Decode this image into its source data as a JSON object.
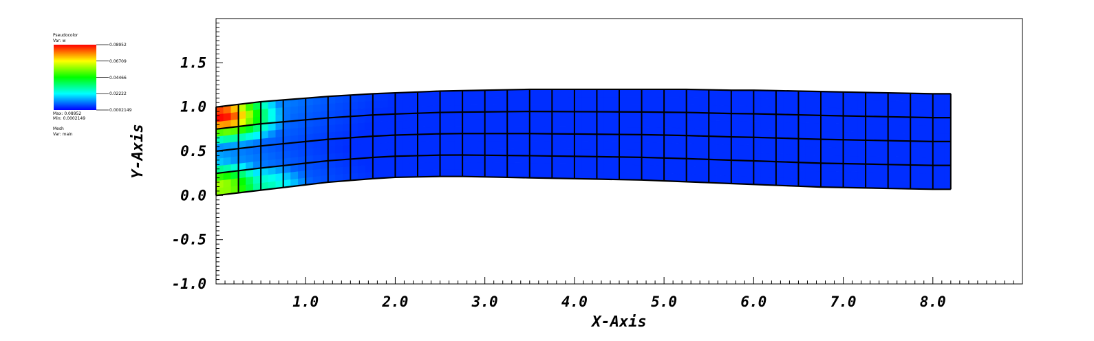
{
  "legend": {
    "pseudocolor": {
      "title": "Pseudocolor",
      "var": "Var: w",
      "ticks": [
        "0.08952",
        "0.06709",
        "0.04466",
        "0.02222",
        "0.0002149"
      ],
      "max": "Max: 0.08952",
      "min": "Min: 0.0002149",
      "colors": [
        "#ff0000",
        "#ffff00",
        "#00ff00",
        "#00ffff",
        "#0000ff"
      ]
    },
    "mesh": {
      "title": "Mesh",
      "var": "Var: main"
    }
  },
  "chart_data": {
    "type": "heatmap",
    "xlabel": "X-Axis",
    "ylabel": "Y-Axis",
    "xlim": [
      0,
      9
    ],
    "ylim": [
      -1,
      2
    ],
    "x_ticks": [
      "1.0",
      "2.0",
      "3.0",
      "4.0",
      "5.0",
      "6.0",
      "7.0",
      "8.0"
    ],
    "y_ticks": [
      "-1.0",
      "-0.5",
      "0.0",
      "0.5",
      "1.0",
      "1.5"
    ],
    "variable": "w",
    "value_range": [
      0.0002149,
      0.08952
    ],
    "mesh_edges": {
      "x": [
        0,
        0.25,
        0.5,
        0.75,
        1.0,
        1.25,
        1.5,
        1.75,
        2.0,
        2.25,
        2.5,
        2.75,
        3.0,
        3.25,
        3.5,
        3.75,
        4.0,
        4.25,
        4.5,
        4.75,
        5.0,
        5.25,
        5.5,
        5.75,
        6.0,
        6.25,
        6.5,
        6.75,
        7.0,
        7.25,
        7.5,
        7.75,
        8.0,
        8.2
      ],
      "bottom": [
        0.0,
        0.03,
        0.06,
        0.09,
        0.12,
        0.15,
        0.17,
        0.19,
        0.205,
        0.21,
        0.215,
        0.215,
        0.21,
        0.205,
        0.2,
        0.195,
        0.19,
        0.185,
        0.18,
        0.175,
        0.165,
        0.155,
        0.145,
        0.135,
        0.125,
        0.115,
        0.105,
        0.095,
        0.09,
        0.085,
        0.08,
        0.075,
        0.07,
        0.07
      ],
      "top": [
        1.0,
        1.03,
        1.06,
        1.08,
        1.1,
        1.12,
        1.135,
        1.15,
        1.16,
        1.17,
        1.18,
        1.185,
        1.19,
        1.195,
        1.2,
        1.2,
        1.2,
        1.2,
        1.2,
        1.2,
        1.2,
        1.2,
        1.195,
        1.19,
        1.19,
        1.185,
        1.18,
        1.175,
        1.17,
        1.165,
        1.16,
        1.155,
        1.15,
        1.15
      ]
    },
    "mesh_rows": 4,
    "high_value_regions": [
      {
        "x": 0.05,
        "y": 0.9,
        "w": 0.08952
      },
      {
        "x": 0.05,
        "y": 0.1,
        "w": 0.06
      },
      {
        "x": 0.5,
        "y": 0.1,
        "w": 0.03
      }
    ]
  }
}
